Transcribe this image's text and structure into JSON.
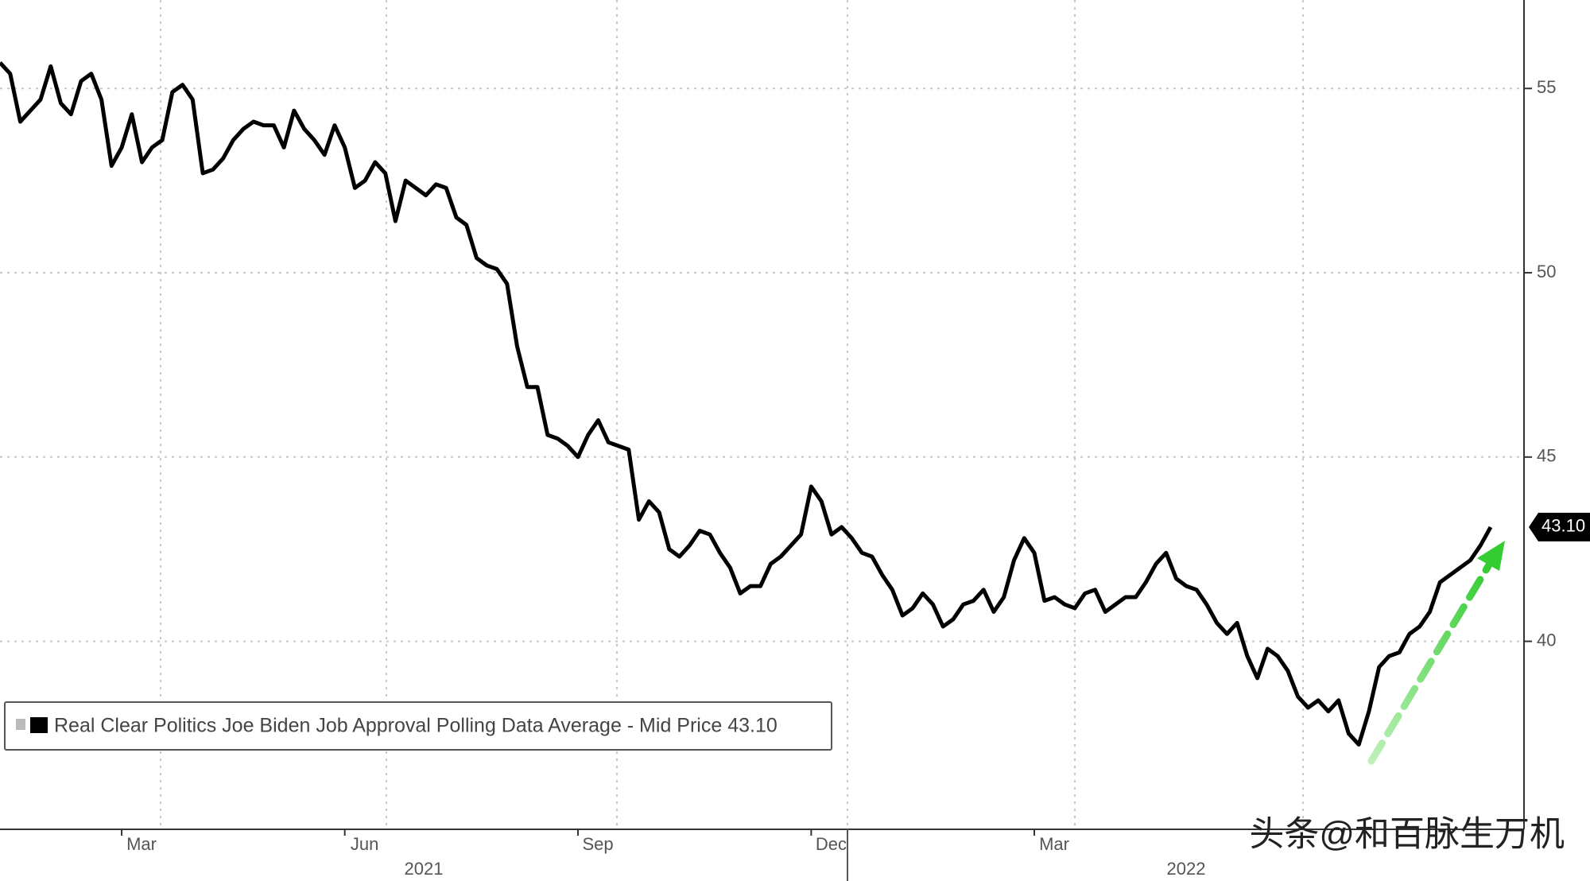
{
  "chart_data": {
    "type": "line",
    "categories": [
      null,
      null,
      null,
      null,
      null,
      null,
      null,
      null,
      null,
      null,
      null,
      null,
      "Mar",
      null,
      null,
      null,
      null,
      null,
      null,
      null,
      null,
      null,
      null,
      null,
      null,
      null,
      null,
      null,
      null,
      null,
      null,
      null,
      null,
      null,
      "Jun",
      null,
      null,
      null,
      null,
      null,
      null,
      null,
      null,
      null,
      null,
      null,
      null,
      null,
      null,
      null,
      null,
      null,
      null,
      null,
      null,
      null,
      null,
      "Sep",
      null,
      null,
      null,
      null,
      null,
      null,
      null,
      null,
      null,
      null,
      null,
      null,
      null,
      null,
      null,
      null,
      null,
      null,
      null,
      null,
      null,
      null,
      "Dec",
      null,
      null,
      null,
      null,
      null,
      null,
      null,
      null,
      null,
      null,
      null,
      null,
      null,
      null,
      null,
      null,
      null,
      null,
      null,
      null,
      null,
      "Mar",
      null,
      null,
      null,
      null,
      null,
      null,
      null,
      null,
      null,
      null,
      null,
      null,
      null,
      null,
      null,
      null,
      null,
      null,
      null,
      null,
      null,
      null,
      null,
      null,
      null,
      null,
      null,
      null,
      null,
      null,
      null,
      null,
      null,
      null,
      null,
      null,
      null,
      null,
      null,
      null,
      null,
      null,
      null,
      null,
      null
    ],
    "year_labels": [
      "2021",
      "2022"
    ],
    "series": [
      {
        "name": "Real Clear Politics Joe Biden Job Approval Polling Data Average - Mid Price 43.10",
        "color": "#000000",
        "values": [
          55.7,
          55.4,
          54.1,
          54.4,
          54.7,
          55.6,
          54.6,
          54.3,
          55.2,
          55.4,
          54.7,
          52.9,
          53.4,
          54.3,
          53.0,
          53.4,
          53.6,
          54.9,
          55.1,
          54.7,
          52.7,
          52.8,
          53.1,
          53.6,
          53.9,
          54.1,
          54.0,
          54.0,
          53.4,
          54.4,
          53.9,
          53.6,
          53.2,
          54.0,
          53.4,
          52.3,
          52.5,
          53.0,
          52.7,
          51.4,
          52.5,
          52.3,
          52.1,
          52.4,
          52.3,
          51.5,
          51.3,
          50.4,
          50.2,
          50.1,
          49.7,
          48.0,
          46.9,
          46.9,
          45.6,
          45.5,
          45.3,
          45.0,
          45.6,
          46.0,
          45.4,
          45.3,
          45.2,
          43.3,
          43.8,
          43.5,
          42.5,
          42.3,
          42.6,
          43.0,
          42.9,
          42.4,
          42.0,
          41.3,
          41.5,
          41.5,
          42.1,
          42.3,
          42.6,
          42.9,
          44.2,
          43.8,
          42.9,
          43.1,
          42.8,
          42.4,
          42.3,
          41.8,
          41.4,
          40.7,
          40.9,
          41.3,
          41.0,
          40.4,
          40.6,
          41.0,
          41.1,
          41.4,
          40.8,
          41.2,
          42.2,
          42.8,
          42.4,
          41.1,
          41.2,
          41.0,
          40.9,
          41.3,
          41.4,
          40.8,
          41.0,
          41.2,
          41.2,
          41.6,
          42.1,
          42.4,
          41.7,
          41.5,
          41.4,
          41.0,
          40.5,
          40.2,
          40.5,
          39.6,
          39.0,
          39.8,
          39.6,
          39.2,
          38.5,
          38.2,
          38.4,
          38.1,
          38.4,
          37.5,
          37.2,
          38.1,
          39.3,
          39.6,
          39.7,
          40.2,
          40.4,
          40.8,
          41.6,
          41.8,
          42.0,
          42.2,
          42.6,
          43.1
        ]
      }
    ],
    "last_price_label": "43.10",
    "ylim": [
      34.9,
      57.4
    ],
    "yticks": [
      40,
      45,
      50,
      55
    ],
    "grid": true,
    "watermark": "头条@和百脉生万机"
  }
}
